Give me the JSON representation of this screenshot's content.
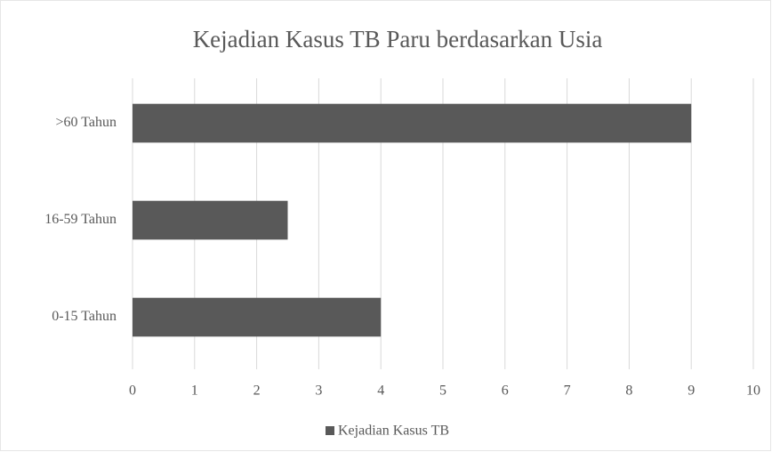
{
  "chart_data": {
    "type": "bar",
    "orientation": "horizontal",
    "title": "Kejadian Kasus TB Paru berdasarkan Usia",
    "categories": [
      "0-15 Tahun",
      "16-59 Tahun",
      ">60 Tahun"
    ],
    "series": [
      {
        "name": "Kejadian Kasus TB",
        "color": "#595959",
        "values": [
          4,
          2.5,
          9
        ]
      }
    ],
    "xlim": [
      0,
      10
    ],
    "xticks": [
      0,
      1,
      2,
      3,
      4,
      5,
      6,
      7,
      8,
      9,
      10
    ],
    "grid": true,
    "legend": "bottom"
  }
}
